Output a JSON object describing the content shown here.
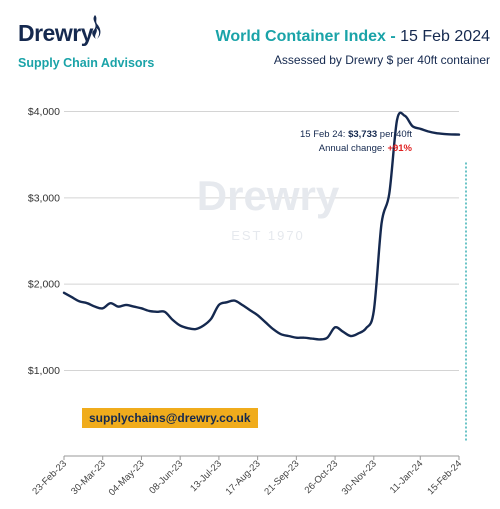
{
  "brand": {
    "logo_text": "Drewry",
    "tagline": "Supply Chain Advisors",
    "watermark_text": "Drewry",
    "watermark_est": "EST 1970",
    "logo_color": "#15294f",
    "accent_color": "#1aa3a8"
  },
  "header": {
    "title_strong": "World Container Index -",
    "title_date": "15 Feb 2024",
    "subtitle": "Assessed by Drewry  $ per 40ft container"
  },
  "annotation": {
    "line1_prefix": "15 Feb 24: ",
    "line1_value": "$3,733",
    "line1_suffix": " per 40ft",
    "line2_prefix": "Annual change: ",
    "line2_value": "+91%",
    "change_color": "#e02020"
  },
  "email": "supplychains@drewry.co.uk",
  "chart_data": {
    "type": "line",
    "title": "World Container Index - 15 Feb 2024",
    "subtitle": "Assessed by Drewry  $ per 40ft container",
    "xlabel": "",
    "ylabel": "",
    "ylim": [
      400,
      4250
    ],
    "yticks": [
      1000,
      2000,
      3000,
      4000
    ],
    "ytick_labels": [
      "$1,000",
      "$2,000",
      "$3,000",
      "$4,000"
    ],
    "grid": true,
    "legend": "none",
    "line_color": "#15294f",
    "xtick_labels": [
      "23-Feb-23",
      "30-Mar-23",
      "04-May-23",
      "08-Jun-23",
      "13-Jul-23",
      "17-Aug-23",
      "21-Sep-23",
      "26-Oct-23",
      "30-Nov-23",
      "11-Jan-24",
      "15-Feb-24"
    ],
    "xtick_index": [
      0,
      5,
      10,
      15,
      20,
      25,
      30,
      35,
      40,
      46,
      51
    ],
    "x": [
      "23-Feb-23",
      "02-Mar-23",
      "09-Mar-23",
      "16-Mar-23",
      "23-Mar-23",
      "30-Mar-23",
      "06-Apr-23",
      "13-Apr-23",
      "20-Apr-23",
      "27-Apr-23",
      "04-May-23",
      "11-May-23",
      "18-May-23",
      "25-May-23",
      "01-Jun-23",
      "08-Jun-23",
      "15-Jun-23",
      "22-Jun-23",
      "29-Jun-23",
      "06-Jul-23",
      "13-Jul-23",
      "20-Jul-23",
      "27-Jul-23",
      "03-Aug-23",
      "10-Aug-23",
      "17-Aug-23",
      "24-Aug-23",
      "31-Aug-23",
      "07-Sep-23",
      "14-Sep-23",
      "21-Sep-23",
      "28-Sep-23",
      "05-Oct-23",
      "12-Oct-23",
      "19-Oct-23",
      "26-Oct-23",
      "02-Nov-23",
      "09-Nov-23",
      "16-Nov-23",
      "23-Nov-23",
      "30-Nov-23",
      "07-Dec-23",
      "14-Dec-23",
      "21-Dec-23",
      "28-Dec-23",
      "04-Jan-24",
      "11-Jan-24",
      "18-Jan-24",
      "25-Jan-24",
      "01-Feb-24",
      "08-Feb-24",
      "15-Feb-24"
    ],
    "series": [
      {
        "values": [
          1900,
          1850,
          1800,
          1780,
          1740,
          1720,
          1780,
          1740,
          1760,
          1740,
          1720,
          1690,
          1680,
          1680,
          1590,
          1520,
          1490,
          1480,
          1520,
          1600,
          1760,
          1790,
          1810,
          1760,
          1700,
          1640,
          1560,
          1480,
          1420,
          1400,
          1380,
          1380,
          1370,
          1360,
          1380,
          1500,
          1450,
          1400,
          1430,
          1490,
          1690,
          2700,
          3050,
          3900,
          3950,
          3830,
          3800,
          3770,
          3750,
          3740,
          3735,
          3733
        ]
      }
    ]
  }
}
